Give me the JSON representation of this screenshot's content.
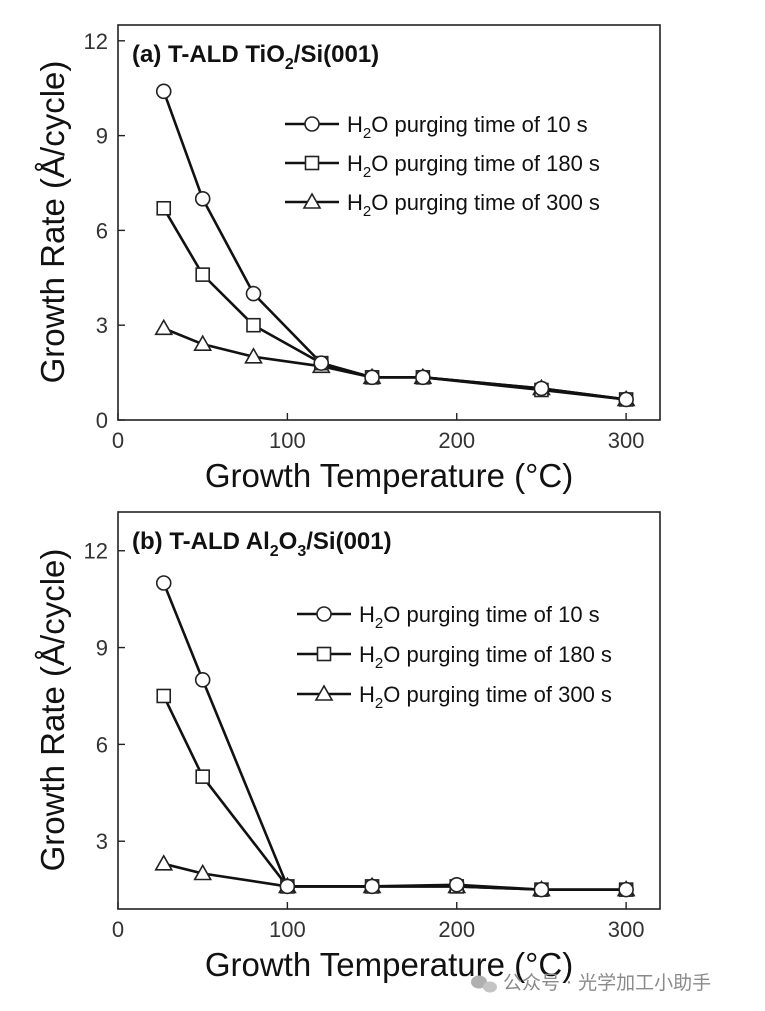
{
  "chart_data": [
    {
      "type": "line",
      "title": "(a) T-ALD TiO",
      "title_sub": "2",
      "title_suffix": "/Si(001)",
      "xlabel": "Growth Temperature (°C)",
      "ylabel": "Growth Rate (Å/cycle)",
      "xlim": [
        0,
        320
      ],
      "ylim": [
        0,
        12.5
      ],
      "xticks": [
        "0",
        "100",
        "200",
        "300"
      ],
      "xtick_values": [
        0,
        100,
        200,
        300
      ],
      "yticks": [
        "0",
        "3",
        "6",
        "9",
        "12"
      ],
      "ytick_values": [
        0,
        3,
        6,
        9,
        12
      ],
      "legend_placement": "top-right",
      "series": [
        {
          "name": "H2O purging time of 10 s",
          "legend_prefix": "H",
          "legend_sub": "2",
          "legend_suffix": "O purging time of 10 s",
          "marker": "circle",
          "x": [
            27,
            50,
            80,
            120,
            150,
            180,
            250,
            300
          ],
          "values": [
            10.4,
            7.0,
            4.0,
            1.8,
            1.35,
            1.35,
            1.0,
            0.65
          ]
        },
        {
          "name": "H2O purging time of 180 s",
          "legend_prefix": "H",
          "legend_sub": "2",
          "legend_suffix": "O purging time of 180 s",
          "marker": "square",
          "x": [
            27,
            50,
            80,
            120,
            150,
            180,
            250,
            300
          ],
          "values": [
            6.7,
            4.6,
            3.0,
            1.8,
            1.35,
            1.35,
            0.95,
            0.65
          ]
        },
        {
          "name": "H2O purging time of 300 s",
          "legend_prefix": "H",
          "legend_sub": "2",
          "legend_suffix": "O purging time of 300 s",
          "marker": "triangle",
          "x": [
            27,
            50,
            80,
            120,
            150,
            180,
            250,
            300
          ],
          "values": [
            2.9,
            2.4,
            2.0,
            1.7,
            1.35,
            1.35,
            1.0,
            0.65
          ]
        }
      ]
    },
    {
      "type": "line",
      "title": "(b) T-ALD Al",
      "title_sub": "2",
      "title_mid": "O",
      "title_sub2": "3",
      "title_suffix": "/Si(001)",
      "xlabel": "Growth Temperature (°C)",
      "ylabel": "Growth Rate (Å/cycle)",
      "xlim": [
        0,
        320
      ],
      "ylim": [
        0.9,
        13.2
      ],
      "xticks": [
        "0",
        "100",
        "200",
        "300"
      ],
      "xtick_values": [
        0,
        100,
        200,
        300
      ],
      "yticks": [
        "3",
        "6",
        "9",
        "12"
      ],
      "ytick_values": [
        3,
        6,
        9,
        12
      ],
      "legend_placement": "right",
      "series": [
        {
          "name": "H2O purging time of 10 s",
          "legend_prefix": "H",
          "legend_sub": "2",
          "legend_suffix": "O purging time of 10 s",
          "marker": "circle",
          "x": [
            27,
            50,
            100,
            150,
            200,
            250,
            300
          ],
          "values": [
            11.0,
            8.0,
            1.6,
            1.6,
            1.65,
            1.5,
            1.5
          ]
        },
        {
          "name": "H2O purging time of 180 s",
          "legend_prefix": "H",
          "legend_sub": "2",
          "legend_suffix": "O purging time of 180 s",
          "marker": "square",
          "x": [
            27,
            50,
            100,
            150,
            200,
            250,
            300
          ],
          "values": [
            7.5,
            5.0,
            1.6,
            1.6,
            1.6,
            1.5,
            1.5
          ]
        },
        {
          "name": "H2O purging time of 300 s",
          "legend_prefix": "H",
          "legend_sub": "2",
          "legend_suffix": "O purging time of 300 s",
          "marker": "triangle",
          "x": [
            27,
            50,
            100,
            150,
            200,
            250,
            300
          ],
          "values": [
            2.3,
            2.0,
            1.6,
            1.6,
            1.6,
            1.5,
            1.5
          ]
        }
      ]
    }
  ],
  "watermark": {
    "text": "公众号 · 光学加工小助手",
    "icon": "wechat-icon"
  }
}
